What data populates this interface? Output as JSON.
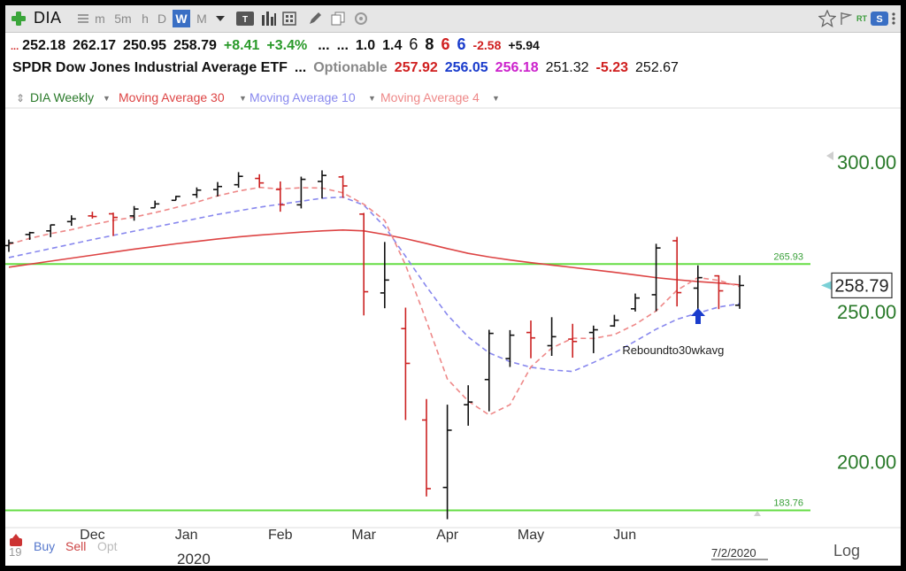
{
  "toolbar": {
    "symbol": "DIA",
    "periods": [
      "m",
      "5m",
      "h",
      "D",
      "W",
      "M"
    ],
    "active_period": "W"
  },
  "quote_line1": {
    "open": "252.18",
    "high": "262.17",
    "low": "250.95",
    "last": "258.79",
    "change": "+8.41",
    "change_pct": "+3.4%",
    "dots": "...",
    "dots2": "...",
    "dots3": "...",
    "v1": "1.0",
    "v2": "1.4",
    "v3": "6",
    "v4": "8",
    "v5": "6",
    "v6": "6",
    "v7": "-2.58",
    "v8": "+5.94"
  },
  "quote_line2": {
    "name": "SPDR Dow Jones Industrial Average ETF",
    "dots": "...",
    "optionable": "Optionable",
    "v1": "257.92",
    "v2": "256.05",
    "v3": "256.18",
    "v4": "251.32",
    "v5": "-5.23",
    "v6": "252.67"
  },
  "legend": {
    "series": "DIA Weekly",
    "ma30": "Moving Average 30",
    "ma10": "Moving Average 10",
    "ma4": "Moving Average 4"
  },
  "bottom": {
    "buy": "Buy",
    "sell": "Sell",
    "opt": "Opt",
    "year": "2020",
    "year_prefix": "19",
    "date": "7/2/2020",
    "log": "Log"
  },
  "colors": {
    "up": "#111111",
    "down": "#cc2222",
    "ma30": "#dd4444",
    "ma10": "#8888ee",
    "ma4": "#ee8888",
    "level_line": "#66dd44",
    "axis_text": "#2a7a2a",
    "annotation_arrow": "#1a3ccc"
  },
  "chart_data": {
    "type": "ohlc-bar",
    "y_range": [
      178,
      318
    ],
    "y_ticks": [
      {
        "value": 300,
        "label": "300.00"
      },
      {
        "value": 250,
        "label": "250.00"
      },
      {
        "value": 200,
        "label": "200.00"
      }
    ],
    "x_labels": [
      {
        "index": 4,
        "label": "Dec"
      },
      {
        "index": 8.5,
        "label": "Jan"
      },
      {
        "index": 13,
        "label": "Feb"
      },
      {
        "index": 17,
        "label": "Mar"
      },
      {
        "index": 21,
        "label": "Apr"
      },
      {
        "index": 25,
        "label": "May"
      },
      {
        "index": 29.5,
        "label": "Jun"
      }
    ],
    "last_price_label": "258.79",
    "horizontal_lines": [
      {
        "value": 265.93,
        "label": "265.93"
      },
      {
        "value": 183.76,
        "label": "183.76"
      }
    ],
    "annotation": {
      "text": "Reboundto30wkavg",
      "index": 31.5,
      "value": 237
    },
    "bars": [
      {
        "o": 272.1,
        "h": 274.1,
        "l": 270.0,
        "c": 273.0
      },
      {
        "o": 275.8,
        "h": 276.7,
        "l": 274.0,
        "c": 276.4
      },
      {
        "o": 277.0,
        "h": 279.1,
        "l": 274.9,
        "c": 279.0
      },
      {
        "o": 280.1,
        "h": 282.2,
        "l": 278.7,
        "c": 281.0
      },
      {
        "o": 282.0,
        "h": 283.4,
        "l": 281.1,
        "c": 281.8
      },
      {
        "o": 282.7,
        "h": 283.1,
        "l": 275.3,
        "c": 281.5
      },
      {
        "o": 282.0,
        "h": 285.3,
        "l": 280.4,
        "c": 284.3
      },
      {
        "o": 284.7,
        "h": 287.1,
        "l": 284.7,
        "c": 286.0
      },
      {
        "o": 287.2,
        "h": 288.7,
        "l": 287.2,
        "c": 288.5
      },
      {
        "o": 289.1,
        "h": 291.5,
        "l": 288.0,
        "c": 290.6
      },
      {
        "o": 290.8,
        "h": 293.3,
        "l": 288.5,
        "c": 291.8
      },
      {
        "o": 292.4,
        "h": 296.6,
        "l": 291.4,
        "c": 295.2
      },
      {
        "o": 294.5,
        "h": 295.9,
        "l": 291.4,
        "c": 293.0
      },
      {
        "o": 290.8,
        "h": 293.5,
        "l": 283.4,
        "c": 285.7
      },
      {
        "o": 285.7,
        "h": 295.1,
        "l": 284.5,
        "c": 294.2
      },
      {
        "o": 293.5,
        "h": 297.2,
        "l": 287.8,
        "c": 295.5
      },
      {
        "o": 295.0,
        "h": 295.5,
        "l": 288.0,
        "c": 292.0
      },
      {
        "o": 282.6,
        "h": 283.0,
        "l": 248.8,
        "c": 256.7
      },
      {
        "o": 256.3,
        "h": 273.3,
        "l": 251.2,
        "c": 260.6
      },
      {
        "o": 244.4,
        "h": 251.4,
        "l": 213.9,
        "c": 232.8
      },
      {
        "o": 213.9,
        "h": 220.9,
        "l": 188.4,
        "c": 191.0
      },
      {
        "o": 191.4,
        "h": 219.0,
        "l": 180.8,
        "c": 210.5
      },
      {
        "o": 219.0,
        "h": 225.5,
        "l": 212.0,
        "c": 219.9
      },
      {
        "o": 227.4,
        "h": 244.0,
        "l": 216.8,
        "c": 242.8
      },
      {
        "o": 234.4,
        "h": 243.9,
        "l": 231.6,
        "c": 242.2
      },
      {
        "o": 243.1,
        "h": 247.1,
        "l": 234.5,
        "c": 241.3
      },
      {
        "o": 238.7,
        "h": 248.2,
        "l": 235.3,
        "c": 241.7
      },
      {
        "o": 240.9,
        "h": 246.0,
        "l": 234.7,
        "c": 240.1
      },
      {
        "o": 243.1,
        "h": 245.4,
        "l": 236.2,
        "c": 244.0
      },
      {
        "o": 245.3,
        "h": 249.0,
        "l": 245.0,
        "c": 247.2
      },
      {
        "o": 251.0,
        "h": 256.1,
        "l": 250.1,
        "c": 254.6
      },
      {
        "o": 255.7,
        "h": 272.7,
        "l": 250.2,
        "c": 271.3
      },
      {
        "o": 273.7,
        "h": 275.0,
        "l": 251.8,
        "c": 256.4
      },
      {
        "o": 257.9,
        "h": 265.5,
        "l": 250.2,
        "c": 261.4
      },
      {
        "o": 262.0,
        "h": 262.2,
        "l": 250.9,
        "c": 257.0
      },
      {
        "o": 252.2,
        "h": 262.2,
        "l": 251.0,
        "c": 258.8
      }
    ],
    "ma30": [
      264.9,
      265.9,
      266.9,
      267.9,
      268.9,
      269.9,
      270.9,
      271.8,
      272.7,
      273.5,
      274.3,
      275.0,
      275.6,
      276.1,
      276.6,
      277.0,
      277.3,
      277.0,
      275.8,
      274.4,
      272.8,
      271.1,
      269.5,
      268.3,
      267.3,
      266.4,
      265.6,
      264.8,
      264.0,
      263.2,
      262.3,
      261.4,
      260.7,
      260.1,
      259.6,
      259.0
    ],
    "ma10": [
      268.1,
      269.6,
      271.1,
      272.6,
      274.1,
      275.5,
      276.9,
      278.3,
      279.7,
      281.1,
      282.5,
      283.7,
      284.9,
      285.9,
      286.9,
      287.9,
      288.3,
      285.6,
      278.4,
      268.5,
      258.4,
      249.0,
      241.6,
      236.3,
      233.4,
      231.5,
      230.6,
      230.1,
      233.1,
      236.3,
      240.2,
      244.2,
      247.5,
      249.6,
      251.6,
      252.7
    ],
    "ma4": [
      272.5,
      274.5,
      276.1,
      277.4,
      279.1,
      280.5,
      281.6,
      283.1,
      284.8,
      286.6,
      288.7,
      290.3,
      291.5,
      291.0,
      291.4,
      291.3,
      289.7,
      285.9,
      280.5,
      265.6,
      246.9,
      227.6,
      220.2,
      215.6,
      219.0,
      231.6,
      237.9,
      241.2,
      241.1,
      242.4,
      245.8,
      250.3,
      257.2,
      261.4,
      260.5,
      258.4
    ]
  }
}
